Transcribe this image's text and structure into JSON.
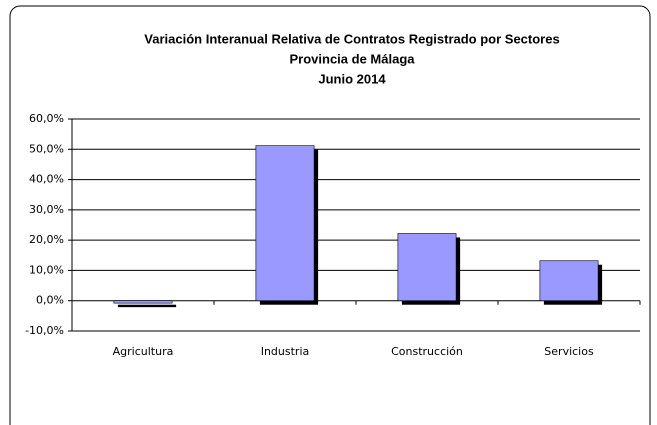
{
  "chart_data": {
    "type": "bar",
    "title": [
      "Variación Interanual Relativa de Contratos Registrado por Sectores",
      "Provincia de Málaga",
      "Junio 2014"
    ],
    "categories": [
      "Agricultura",
      "Industria",
      "Construcción",
      "Servicios"
    ],
    "values": [
      -0.8,
      51.2,
      22.2,
      13.2
    ],
    "color": "#9999ff",
    "ylim": [
      -10,
      60
    ],
    "yticks": [
      {
        "value": -10,
        "label": "-10,0%"
      },
      {
        "value": 0,
        "label": "0,0%"
      },
      {
        "value": 10,
        "label": "10,0%"
      },
      {
        "value": 20,
        "label": "20,0%"
      },
      {
        "value": 30,
        "label": "30,0%"
      },
      {
        "value": 40,
        "label": "40,0%"
      },
      {
        "value": 50,
        "label": "50,0%"
      },
      {
        "value": 60,
        "label": "60,0%"
      }
    ],
    "grid": true
  }
}
